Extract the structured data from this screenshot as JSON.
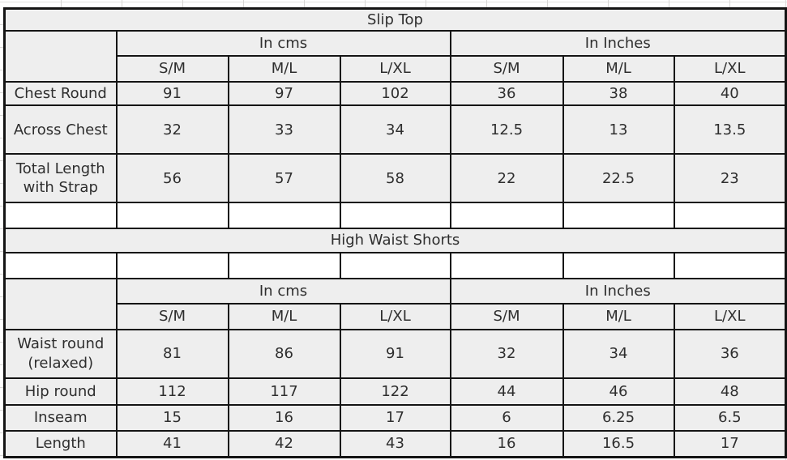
{
  "colors": {
    "cell_background": "#eeeeee",
    "empty_cell_background": "#ffffff",
    "border": "#141414",
    "text": "#2e2e2e",
    "margin_gridline": "#d7d6d4"
  },
  "chart_data": [
    {
      "type": "table",
      "title": "Slip Top",
      "unit_groups": [
        "In cms",
        "In Inches"
      ],
      "size_columns": [
        "S/M",
        "M/L",
        "L/XL",
        "S/M",
        "M/L",
        "L/XL"
      ],
      "rows": [
        {
          "label": "Chest Round",
          "values": [
            "91",
            "97",
            "102",
            "36",
            "38",
            "40"
          ]
        },
        {
          "label": "Across Chest",
          "values": [
            "32",
            "33",
            "34",
            "12.5",
            "13",
            "13.5"
          ]
        },
        {
          "label": "Total Length with Strap",
          "values": [
            "56",
            "57",
            "58",
            "22",
            "22.5",
            "23"
          ]
        }
      ]
    },
    {
      "type": "table",
      "title": "High Waist Shorts",
      "unit_groups": [
        "In cms",
        "In Inches"
      ],
      "size_columns": [
        "S/M",
        "M/L",
        "L/XL",
        "S/M",
        "M/L",
        "L/XL"
      ],
      "rows": [
        {
          "label": "Waist round (relaxed)",
          "values": [
            "81",
            "86",
            "91",
            "32",
            "34",
            "36"
          ]
        },
        {
          "label": "Hip round",
          "values": [
            "112",
            "117",
            "122",
            "44",
            "46",
            "48"
          ]
        },
        {
          "label": "Inseam",
          "values": [
            "15",
            "16",
            "17",
            "6",
            "6.25",
            "6.5"
          ]
        },
        {
          "label": "Length",
          "values": [
            "41",
            "42",
            "43",
            "16",
            "16.5",
            "17"
          ]
        }
      ]
    }
  ]
}
